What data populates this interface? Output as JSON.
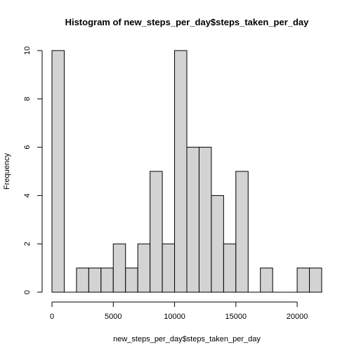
{
  "chart_data": {
    "type": "bar",
    "title": "Histogram of new_steps_per_day$steps_taken_per_day",
    "xlabel": "new_steps_per_day$steps_taken_per_day",
    "ylabel": "Frequency",
    "bin_width": 1000,
    "bins": [
      {
        "start": 0,
        "end": 1000,
        "count": 10
      },
      {
        "start": 1000,
        "end": 2000,
        "count": 0
      },
      {
        "start": 2000,
        "end": 3000,
        "count": 1
      },
      {
        "start": 3000,
        "end": 4000,
        "count": 1
      },
      {
        "start": 4000,
        "end": 5000,
        "count": 1
      },
      {
        "start": 5000,
        "end": 6000,
        "count": 2
      },
      {
        "start": 6000,
        "end": 7000,
        "count": 1
      },
      {
        "start": 7000,
        "end": 8000,
        "count": 2
      },
      {
        "start": 8000,
        "end": 9000,
        "count": 5
      },
      {
        "start": 9000,
        "end": 10000,
        "count": 2
      },
      {
        "start": 10000,
        "end": 11000,
        "count": 10
      },
      {
        "start": 11000,
        "end": 12000,
        "count": 6
      },
      {
        "start": 12000,
        "end": 13000,
        "count": 6
      },
      {
        "start": 13000,
        "end": 14000,
        "count": 4
      },
      {
        "start": 14000,
        "end": 15000,
        "count": 2
      },
      {
        "start": 15000,
        "end": 16000,
        "count": 5
      },
      {
        "start": 16000,
        "end": 17000,
        "count": 0
      },
      {
        "start": 17000,
        "end": 18000,
        "count": 1
      },
      {
        "start": 18000,
        "end": 19000,
        "count": 0
      },
      {
        "start": 19000,
        "end": 20000,
        "count": 0
      },
      {
        "start": 20000,
        "end": 21000,
        "count": 1
      },
      {
        "start": 21000,
        "end": 22000,
        "count": 1
      }
    ],
    "xlim": [
      0,
      22000
    ],
    "ylim": [
      0,
      10
    ],
    "x_ticks": [
      0,
      5000,
      10000,
      15000,
      20000
    ],
    "y_ticks": [
      0,
      2,
      4,
      6,
      8,
      10
    ],
    "grid": false,
    "bar_color": "#d3d3d3",
    "edge_color": "#000000"
  }
}
